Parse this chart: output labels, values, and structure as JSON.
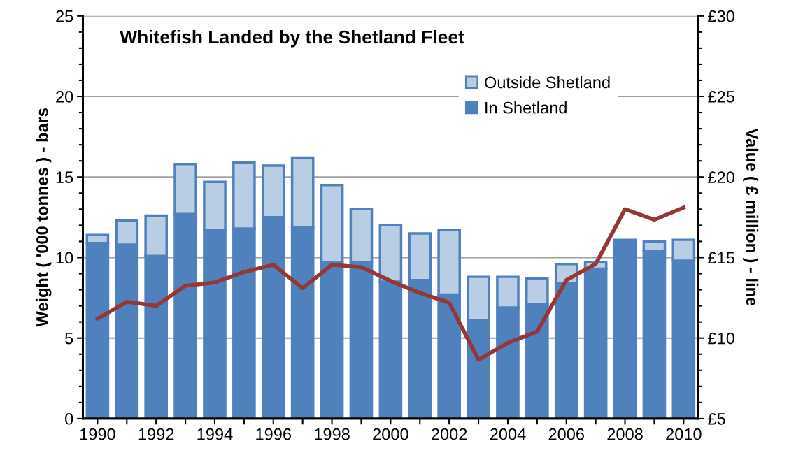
{
  "chart_data": {
    "type": "bar",
    "title": "Whitefish Landed by the Shetland Fleet",
    "ylabel": "Weight ( '000 tonnes ) - bars",
    "y2label": "Value ( £ million ) - line",
    "categories": [
      "1990",
      null,
      "1992",
      null,
      "1994",
      null,
      "1996",
      null,
      "1998",
      null,
      "2000",
      null,
      "2002",
      null,
      "2004",
      null,
      "2006",
      null,
      "2008",
      null,
      "2010"
    ],
    "stacked": true,
    "grid": "y",
    "legend": "top right",
    "series": [
      {
        "name": "In Shetland",
        "color": "#4f81bd",
        "values": [
          10.9,
          10.8,
          10.1,
          12.7,
          11.7,
          11.8,
          12.5,
          11.9,
          9.7,
          9.7,
          8.5,
          8.6,
          7.7,
          6.1,
          6.9,
          7.1,
          8.4,
          9.3,
          11.0,
          10.4,
          9.8
        ]
      },
      {
        "name": "Outside Shetland",
        "color": "#b9cde5",
        "values": [
          0.5,
          1.5,
          2.5,
          3.1,
          3.0,
          4.1,
          3.2,
          4.3,
          4.8,
          3.3,
          3.5,
          2.9,
          4.0,
          2.7,
          1.9,
          1.6,
          1.2,
          0.4,
          0.1,
          0.6,
          1.3
        ]
      },
      {
        "type": "line",
        "axis": "y2",
        "color": "#953735",
        "marker": "none",
        "line_style": "solid",
        "values": [
          11.2,
          12.25,
          12.0,
          13.25,
          13.45,
          14.1,
          14.55,
          13.1,
          14.55,
          14.4,
          13.55,
          12.8,
          12.2,
          8.65,
          9.7,
          10.4,
          13.6,
          14.6,
          18.0,
          17.35,
          18.1
        ]
      }
    ],
    "ylim": [
      0,
      25
    ],
    "yticks": [
      0,
      {
        "value": 1,
        "label": null
      },
      {
        "value": 2,
        "label": null
      },
      {
        "value": 3,
        "label": null
      },
      {
        "value": 4,
        "label": null
      },
      5,
      {
        "value": 6,
        "label": null
      },
      {
        "value": 7,
        "label": null
      },
      {
        "value": 8,
        "label": null
      },
      {
        "value": 9,
        "label": null
      },
      10,
      {
        "value": 11,
        "label": null
      },
      {
        "value": 12,
        "label": null
      },
      {
        "value": 13,
        "label": null
      },
      {
        "value": 14,
        "label": null
      },
      15,
      {
        "value": 16,
        "label": null
      },
      {
        "value": 17,
        "label": null
      },
      {
        "value": 18,
        "label": null
      },
      {
        "value": 19,
        "label": null
      },
      20,
      {
        "value": 21,
        "label": null
      },
      {
        "value": 22,
        "label": null
      },
      {
        "value": 23,
        "label": null
      },
      {
        "value": 24,
        "label": null
      },
      25
    ],
    "y2lim": [
      5,
      30
    ],
    "y2ticks": [
      {
        "value": 5,
        "label": "£5"
      },
      {
        "value": 6,
        "label": null
      },
      {
        "value": 7,
        "label": null
      },
      {
        "value": 8,
        "label": null
      },
      {
        "value": 9,
        "label": null
      },
      {
        "value": 10,
        "label": "£10"
      },
      {
        "value": 11,
        "label": null
      },
      {
        "value": 12,
        "label": null
      },
      {
        "value": 13,
        "label": null
      },
      {
        "value": 14,
        "label": null
      },
      {
        "value": 15,
        "label": "£15"
      },
      {
        "value": 16,
        "label": null
      },
      {
        "value": 17,
        "label": null
      },
      {
        "value": 18,
        "label": null
      },
      {
        "value": 19,
        "label": null
      },
      {
        "value": 20,
        "label": "£20"
      },
      {
        "value": 21,
        "label": null
      },
      {
        "value": 22,
        "label": null
      },
      {
        "value": 23,
        "label": null
      },
      {
        "value": 24,
        "label": null
      },
      {
        "value": 25,
        "label": "£25"
      },
      {
        "value": 26,
        "label": null
      },
      {
        "value": 27,
        "label": null
      },
      {
        "value": 28,
        "label": null
      },
      {
        "value": 29,
        "label": null
      },
      {
        "value": 30,
        "label": "£30"
      }
    ]
  }
}
